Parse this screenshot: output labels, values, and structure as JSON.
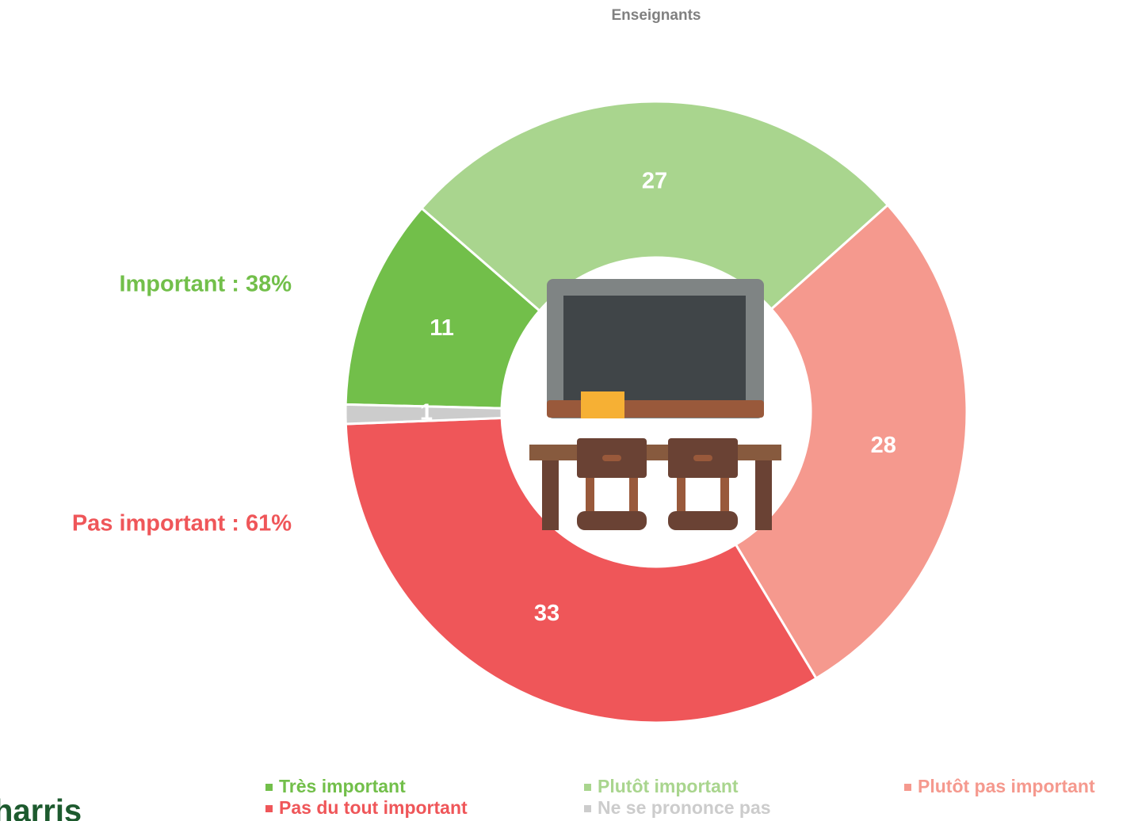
{
  "chart_data": {
    "type": "donut",
    "title": "Enseignants",
    "categories": [
      "Très important",
      "Plutôt important",
      "Plutôt pas important",
      "Pas du tout important",
      "Ne se prononce pas"
    ],
    "values": [
      11,
      27,
      28,
      33,
      1
    ],
    "colors": [
      "#72bf4a",
      "#a9d58e",
      "#f5998e",
      "#ef5659",
      "#cccccc"
    ],
    "annotations": [
      {
        "text": "Important : 38%",
        "color": "#72bf4a"
      },
      {
        "text": "Pas important : 61%",
        "color": "#ef5659"
      }
    ],
    "logo": "harris"
  }
}
